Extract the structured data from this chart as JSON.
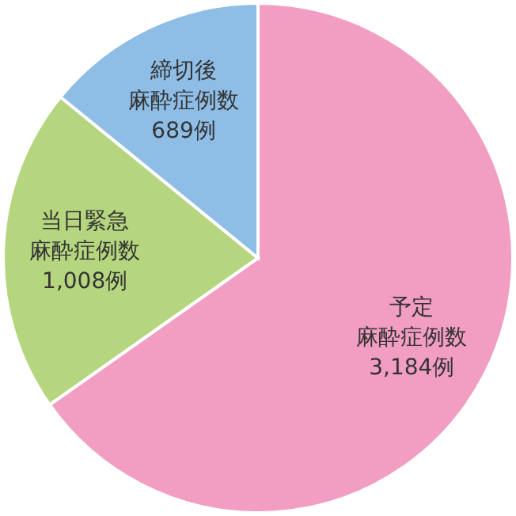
{
  "chart_data": {
    "type": "pie",
    "categories": [
      "予定麻酔症例数",
      "当日緊急麻酔症例数",
      "締切後麻酔症例数"
    ],
    "values": [
      3184,
      1008,
      689
    ],
    "value_labels": [
      "3,184例",
      "1,008例",
      "689例"
    ],
    "colors": [
      "#f19ec2",
      "#b5d67e",
      "#8ebde6"
    ]
  }
}
